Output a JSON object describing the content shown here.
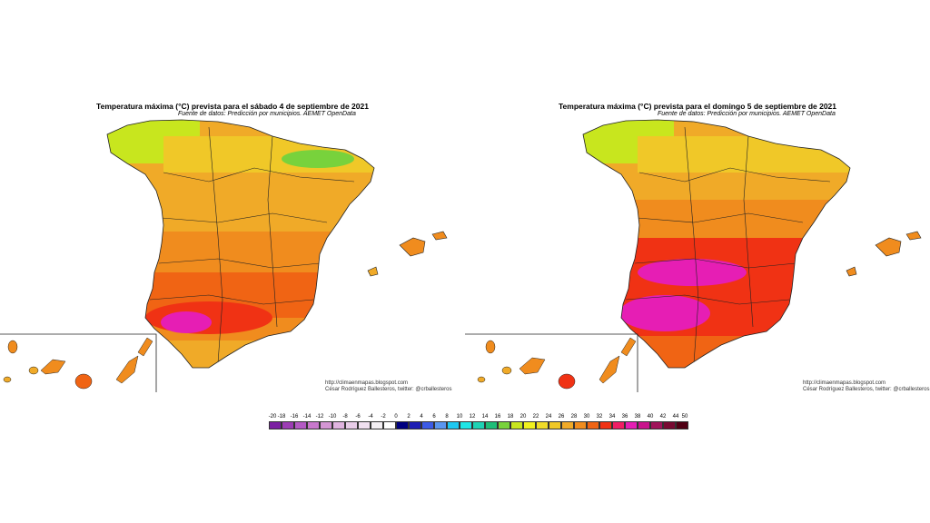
{
  "maps": [
    {
      "title": "Temperatura máxima (°C) prevista para el sábado 4 de septiembre de 2021",
      "source": "Fuente de datos: Predicción por municipios. AEMET OpenData",
      "credit_url": "http://climaenmapas.blogspot.com",
      "credit_author": "César Rodríguez Ballesteros, twitter: @crballesteros"
    },
    {
      "title": "Temperatura máxima (°C) prevista para el domingo 5 de septiembre de 2021",
      "source": "Fuente de datos: Predicción por municipios. AEMET OpenData",
      "credit_url": "http://climaenmapas.blogspot.com",
      "credit_author": "César Rodríguez Ballesteros, twitter: @crballesteros"
    }
  ],
  "legend": {
    "ticks": [
      "-20",
      "-18",
      "-16",
      "-14",
      "-12",
      "-10",
      "-8",
      "-6",
      "-4",
      "-2",
      "0",
      "2",
      "4",
      "6",
      "8",
      "10",
      "12",
      "14",
      "16",
      "18",
      "20",
      "22",
      "24",
      "26",
      "28",
      "30",
      "32",
      "34",
      "36",
      "38",
      "40",
      "42",
      "44",
      "50"
    ],
    "colors": [
      "#7b1fa2",
      "#9c3cb4",
      "#b45ac4",
      "#c878cc",
      "#d496d4",
      "#e0b4e0",
      "#e8cce8",
      "#f0e0f0",
      "#f4f0f4",
      "#ffffff",
      "#000080",
      "#1e1eb4",
      "#3c5ae6",
      "#5a96f0",
      "#1ec8f0",
      "#1ee6e6",
      "#1ed2b4",
      "#1ebe78",
      "#78d23c",
      "#c8e61e",
      "#f0f01e",
      "#f0dc28",
      "#f0c828",
      "#f0aa28",
      "#f08c1e",
      "#f06414",
      "#f03214",
      "#f01e64",
      "#e61eb4",
      "#c8148c",
      "#a0145a",
      "#780a32",
      "#500014"
    ]
  }
}
